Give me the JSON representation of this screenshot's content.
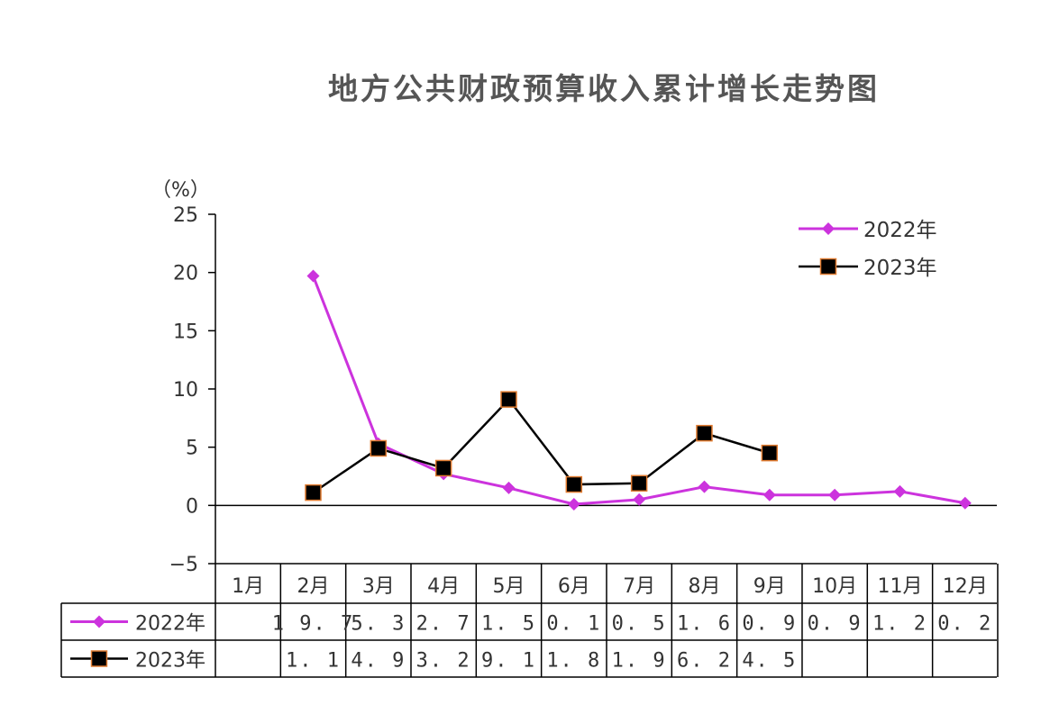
{
  "chart_data": {
    "type": "line",
    "title": "地方公共财政预算收入累计增长走势图",
    "unit_label": "（%）",
    "categories": [
      "1月",
      "2月",
      "3月",
      "4月",
      "5月",
      "6月",
      "7月",
      "8月",
      "9月",
      "10月",
      "11月",
      "12月"
    ],
    "yticks": [
      "25",
      "20",
      "15",
      "10",
      "5",
      "0",
      "−5"
    ],
    "ylim": [
      -5,
      25
    ],
    "legend_position": "top-right",
    "series": [
      {
        "name": "2022年",
        "color": "#cc33dd",
        "marker": "diamond",
        "values": [
          null,
          19.7,
          5.3,
          2.7,
          1.5,
          0.1,
          0.5,
          1.6,
          0.9,
          0.9,
          1.2,
          0.2
        ],
        "labels": [
          "",
          "19.7",
          "5.3",
          "2.7",
          "1.5",
          "0.1",
          "0.5",
          "1.6",
          "0.9",
          "0.9",
          "1.2",
          "0.2"
        ]
      },
      {
        "name": "2023年",
        "color": "#000000",
        "marker_fill": "#000000",
        "marker_edge": "#e07b30",
        "marker": "square",
        "values": [
          null,
          1.1,
          4.9,
          3.2,
          9.1,
          1.8,
          1.9,
          6.2,
          4.5,
          null,
          null,
          null
        ],
        "labels": [
          "",
          "1.1",
          "4.9",
          "3.2",
          "9.1",
          "1.8",
          "1.9",
          "6.2",
          "4.5",
          "",
          "",
          ""
        ]
      }
    ]
  }
}
